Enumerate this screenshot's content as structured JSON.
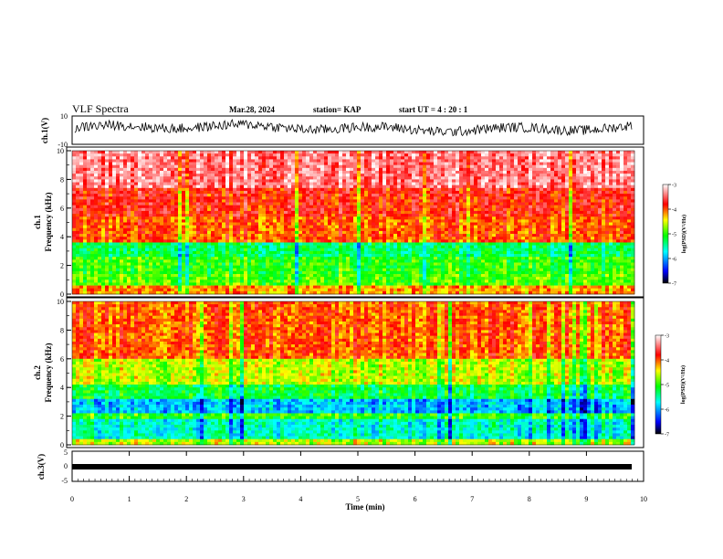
{
  "header": {
    "title": "VLF Spectra",
    "date": "Mar.28, 2024",
    "station": "station= KAP",
    "start_ut": "start UT =  4 : 20 : 1"
  },
  "chart_data": [
    {
      "id": "ch1-waveform",
      "type": "line",
      "ylabel": "ch.1(V)",
      "ylim": [
        -10,
        10
      ],
      "yticks": [
        "10",
        "-10"
      ],
      "xlim": [
        0,
        10
      ],
      "color": "#000000",
      "description_values": {
        "baseline": 1.5,
        "noise_amplitude": 3.5
      }
    },
    {
      "id": "ch1-spectrogram",
      "type": "heatmap",
      "ylabel": "ch.1\nFrequency (kHz)",
      "ylim": [
        0,
        10
      ],
      "yticks": [
        "0",
        "2",
        "4",
        "6",
        "8",
        "10"
      ],
      "xlim": [
        0,
        10
      ],
      "colorbar": {
        "label": "log(PSD)(V²/Hz)",
        "range": [
          -7,
          -3
        ],
        "ticks": [
          "-3",
          "-4",
          "-5",
          "-6",
          "-7"
        ]
      },
      "bands_log_psd": [
        {
          "f": [
            0,
            0.6
          ],
          "v": -4.2
        },
        {
          "f": [
            0.6,
            1.4
          ],
          "v": -4.9
        },
        {
          "f": [
            1.4,
            2.6
          ],
          "v": -5.0
        },
        {
          "f": [
            2.6,
            3.6
          ],
          "v": -5.3
        },
        {
          "f": [
            3.6,
            5.5
          ],
          "v": -4.0
        },
        {
          "f": [
            5.5,
            7.5
          ],
          "v": -3.8
        },
        {
          "f": [
            7.5,
            10
          ],
          "v": -3.4
        }
      ]
    },
    {
      "id": "ch2-spectrogram",
      "type": "heatmap",
      "ylabel": "ch.2\nFrequency (kHz)",
      "ylim": [
        0,
        10
      ],
      "yticks": [
        "0",
        "2",
        "4",
        "6",
        "8",
        "10"
      ],
      "xlim": [
        0,
        10
      ],
      "colorbar": {
        "label": "log(PSD)(V²/Hz)",
        "range": [
          -7,
          -3
        ],
        "ticks": [
          "-3",
          "-4",
          "-5",
          "-6",
          "-7"
        ]
      },
      "bands_log_psd": [
        {
          "f": [
            0,
            0.5
          ],
          "v": -4.6
        },
        {
          "f": [
            0.5,
            1.8
          ],
          "v": -5.6
        },
        {
          "f": [
            1.8,
            2.2
          ],
          "v": -5.0
        },
        {
          "f": [
            2.2,
            3.2
          ],
          "v": -5.9
        },
        {
          "f": [
            3.2,
            4.2
          ],
          "v": -5.2
        },
        {
          "f": [
            4.2,
            6.0
          ],
          "v": -4.6
        },
        {
          "f": [
            6.0,
            10
          ],
          "v": -4.0
        }
      ]
    },
    {
      "id": "ch3-waveform",
      "type": "line",
      "ylabel": "ch.3(V)",
      "ylim": [
        -5,
        5
      ],
      "yticks": [
        "5",
        "0",
        "-5"
      ],
      "xlim": [
        0,
        10
      ],
      "xlabel": "Time (min)",
      "xticks": [
        "0",
        "1",
        "2",
        "3",
        "4",
        "5",
        "6",
        "7",
        "8",
        "9",
        "10"
      ],
      "color": "#000000",
      "description_values": {
        "baseline": 0.3
      }
    }
  ],
  "colors": {
    "colormap": [
      "#000000",
      "#0000ff",
      "#00ffff",
      "#00ff00",
      "#ffff00",
      "#ff0000",
      "#ffffff"
    ]
  }
}
